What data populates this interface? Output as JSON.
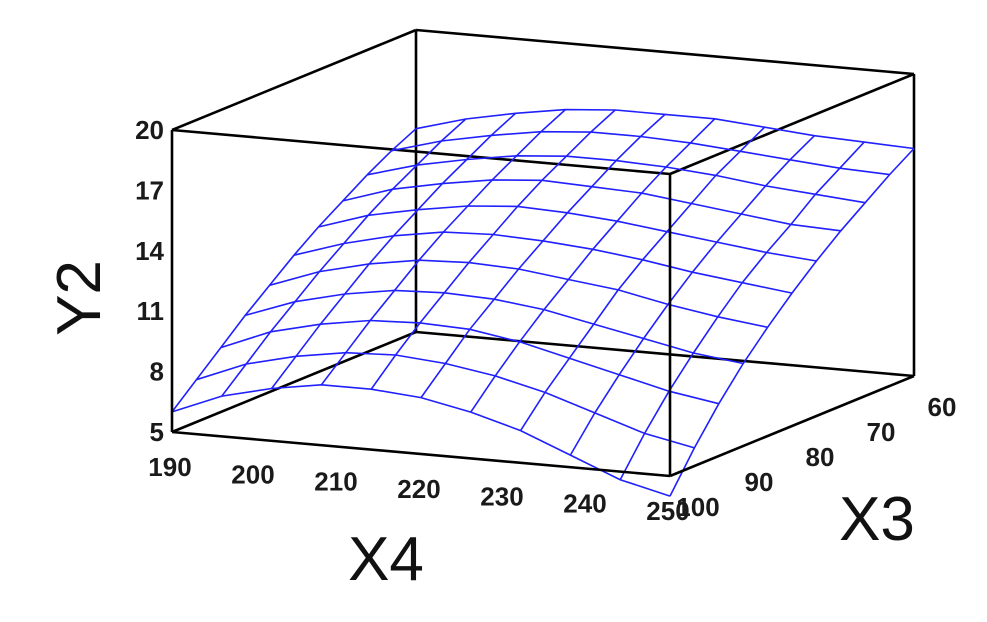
{
  "chart_data": {
    "type": "surface",
    "xlabel": "X4",
    "ylabel": "X3",
    "zlabel": "Y2",
    "x_ticks": [
      "190",
      "200",
      "210",
      "220",
      "230",
      "240",
      "250"
    ],
    "y_ticks": [
      "100",
      "90",
      "80",
      "70",
      "60"
    ],
    "z_ticks": [
      "5",
      "8",
      "11",
      "14",
      "17",
      "20"
    ],
    "xlim": [
      190,
      250
    ],
    "ylim": [
      100,
      60
    ],
    "zlim": [
      5,
      20
    ],
    "grid": false,
    "surface_color": "#2020ff",
    "frame_color": "#000000",
    "x": [
      190,
      196,
      202,
      208,
      214,
      220,
      226,
      232,
      238,
      244,
      250
    ],
    "y": [
      100,
      96,
      92,
      88,
      84,
      80,
      76,
      72,
      68,
      64,
      60
    ],
    "z": [
      [
        6.0,
        7.0,
        7.6,
        8.0,
        8.0,
        7.8,
        7.3,
        6.6,
        5.6,
        4.6,
        4.0
      ],
      [
        7.1,
        8.1,
        8.7,
        9.1,
        9.2,
        9.0,
        8.6,
        8.0,
        7.2,
        6.4,
        5.9
      ],
      [
        8.2,
        9.2,
        9.8,
        10.2,
        10.3,
        10.2,
        9.8,
        9.2,
        8.6,
        8.0,
        7.6
      ],
      [
        9.3,
        10.2,
        10.8,
        11.2,
        11.3,
        11.2,
        10.9,
        10.4,
        9.9,
        9.4,
        9.1
      ],
      [
        10.3,
        11.2,
        11.8,
        12.2,
        12.3,
        12.2,
        11.9,
        11.6,
        11.1,
        10.7,
        10.4
      ],
      [
        11.3,
        12.1,
        12.7,
        13.1,
        13.2,
        13.1,
        12.9,
        12.6,
        12.2,
        11.9,
        11.6
      ],
      [
        12.2,
        13.0,
        13.5,
        13.9,
        14.1,
        14.0,
        13.8,
        13.5,
        13.2,
        12.9,
        12.7
      ],
      [
        13.0,
        13.8,
        14.3,
        14.7,
        14.9,
        14.8,
        14.7,
        14.4,
        14.1,
        13.8,
        13.7
      ],
      [
        13.8,
        14.5,
        15.0,
        15.4,
        15.6,
        15.6,
        15.5,
        15.3,
        15.0,
        14.8,
        14.6
      ],
      [
        14.5,
        15.2,
        15.7,
        16.1,
        16.3,
        16.3,
        16.2,
        16.0,
        15.8,
        15.6,
        15.5
      ],
      [
        15.1,
        15.8,
        16.3,
        16.7,
        16.9,
        16.9,
        16.9,
        16.7,
        16.5,
        16.4,
        16.3
      ]
    ]
  }
}
